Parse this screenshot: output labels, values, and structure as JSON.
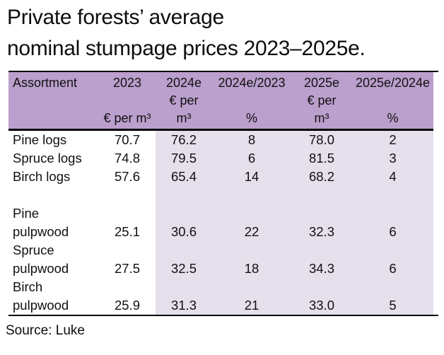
{
  "title": {
    "lines": [
      "Private forests’ average",
      "nominal stumpage prices 2023–2025e."
    ]
  },
  "source": "Source: Luke",
  "colors": {
    "header-fill": "#bb9fcd",
    "band-fill": "#e6dfec",
    "border": "#000000",
    "text": "#111111"
  },
  "table": {
    "header": [
      {
        "label": "Assortment",
        "line2": "",
        "line3": ""
      },
      {
        "label": "2023",
        "line2": "",
        "line3": "€ per m³"
      },
      {
        "label": "2024e",
        "line2": "€ per",
        "line3": "m³"
      },
      {
        "label": "2024e/2023",
        "line2": "",
        "line3": "%"
      },
      {
        "label": "2025e",
        "line2": "€ per",
        "line3": "m³"
      },
      {
        "label": "2025e/2024e",
        "line2": "",
        "line3": "%"
      }
    ],
    "rows": [
      {
        "name": "Pine logs",
        "values": [
          "70.7",
          "76.2",
          "8",
          "78.0",
          "2"
        ]
      },
      {
        "name": "Spruce logs",
        "values": [
          "74.8",
          "79.5",
          "6",
          "81.5",
          "3"
        ]
      },
      {
        "name": "Birch logs",
        "values": [
          "57.6",
          "65.4",
          "14",
          "68.2",
          "4"
        ]
      },
      {
        "name_lines": [
          "Pine",
          "pulpwood"
        ],
        "values": [
          "25.1",
          "30.6",
          "22",
          "32.3",
          "6"
        ]
      },
      {
        "name_lines": [
          "Spruce",
          "pulpwood"
        ],
        "values": [
          "27.5",
          "32.5",
          "18",
          "34.3",
          "6"
        ]
      },
      {
        "name_lines": [
          "Birch",
          "pulpwood"
        ],
        "values": [
          "25.9",
          "31.3",
          "21",
          "33.0",
          "5"
        ]
      }
    ]
  },
  "chart_data": {
    "type": "table",
    "title": "Private forests’ average nominal stumpage prices 2023–2025e.",
    "columns": [
      "Assortment",
      "2023 (€ per m³)",
      "2024e (€ per m³)",
      "2024e/2023 (%)",
      "2025e (€ per m³)",
      "2025e/2024e (%)"
    ],
    "rows": [
      [
        "Pine logs",
        70.7,
        76.2,
        8,
        78.0,
        2
      ],
      [
        "Spruce logs",
        74.8,
        79.5,
        6,
        81.5,
        3
      ],
      [
        "Birch logs",
        57.6,
        65.4,
        14,
        68.2,
        4
      ],
      [
        "Pine pulpwood",
        25.1,
        30.6,
        22,
        32.3,
        6
      ],
      [
        "Spruce pulpwood",
        27.5,
        32.5,
        18,
        34.3,
        6
      ],
      [
        "Birch pulpwood",
        25.9,
        31.3,
        21,
        33.0,
        5
      ]
    ],
    "source": "Luke",
    "layout_hints": {
      "highlighted_forecast_columns": [
        "2024e",
        "2024e/2023",
        "2025e",
        "2025e/2024e"
      ]
    }
  }
}
